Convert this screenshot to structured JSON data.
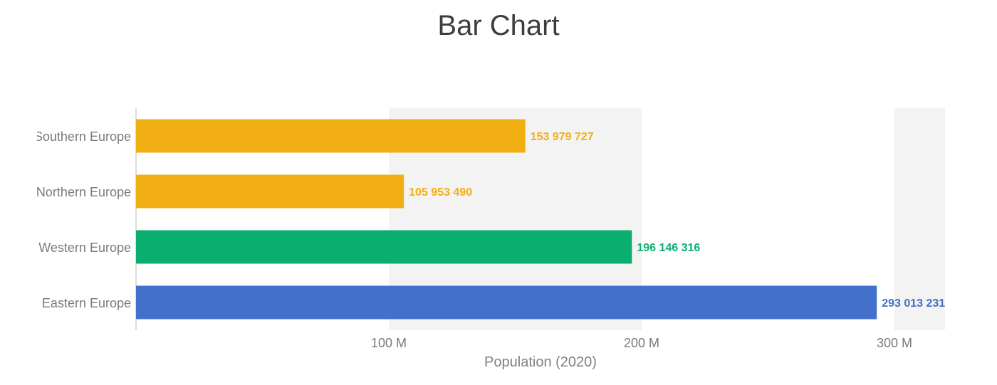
{
  "chart_data": {
    "type": "bar",
    "orientation": "horizontal",
    "title": "Bar Chart",
    "xlabel": "Population (2020)",
    "ylabel": "",
    "categories": [
      "Southern Europe",
      "Northern Europe",
      "Western Europe",
      "Eastern Europe"
    ],
    "values": [
      153979727,
      105953490,
      196146316,
      293013231
    ],
    "value_labels": [
      "153 979 727",
      "105 953 490",
      "196 146 316",
      "293 013 231"
    ],
    "bar_colors": [
      "#F2AF13",
      "#F2AF13",
      "#0AAF70",
      "#4370CB"
    ],
    "xlim": [
      0,
      320000000
    ],
    "xticks": [
      100000000,
      200000000,
      300000000
    ],
    "xtick_labels": [
      "100 M",
      "200 M",
      "300 M"
    ],
    "grid": "alternating bands",
    "legend": "none"
  }
}
